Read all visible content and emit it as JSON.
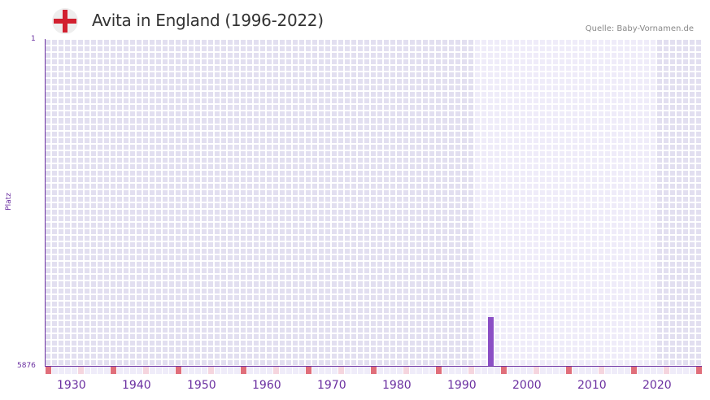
{
  "header": {
    "title": "Avita in England (1996-2022)",
    "flag_icon": "england-flag-icon",
    "source": "Quelle: Baby-Vornamen.de"
  },
  "colors": {
    "accent": "#6a2fa0",
    "bar": "#8b4fc5",
    "grid_dark": "#e2dff0",
    "grid_light": "#efecf9",
    "marker_decade": "#e06e7a",
    "marker_half": "#f5d5de"
  },
  "chart_data": {
    "type": "bar",
    "title": "Avita in England (1996-2022)",
    "xlabel": "",
    "ylabel": "Platz",
    "y_inverted": true,
    "ylim": [
      1,
      5876
    ],
    "y_ticks": [
      "1",
      "5876"
    ],
    "x_range": [
      1928,
      2028
    ],
    "x_ticks": [
      "1930",
      "1940",
      "1950",
      "1960",
      "1970",
      "1980",
      "1990",
      "2000",
      "2010",
      "2020"
    ],
    "data_range_years": [
      1996,
      2022
    ],
    "grid": true,
    "legend": null,
    "series": [
      {
        "name": "Avita",
        "x": [
          1996
        ],
        "values": [
          5000
        ]
      }
    ]
  }
}
